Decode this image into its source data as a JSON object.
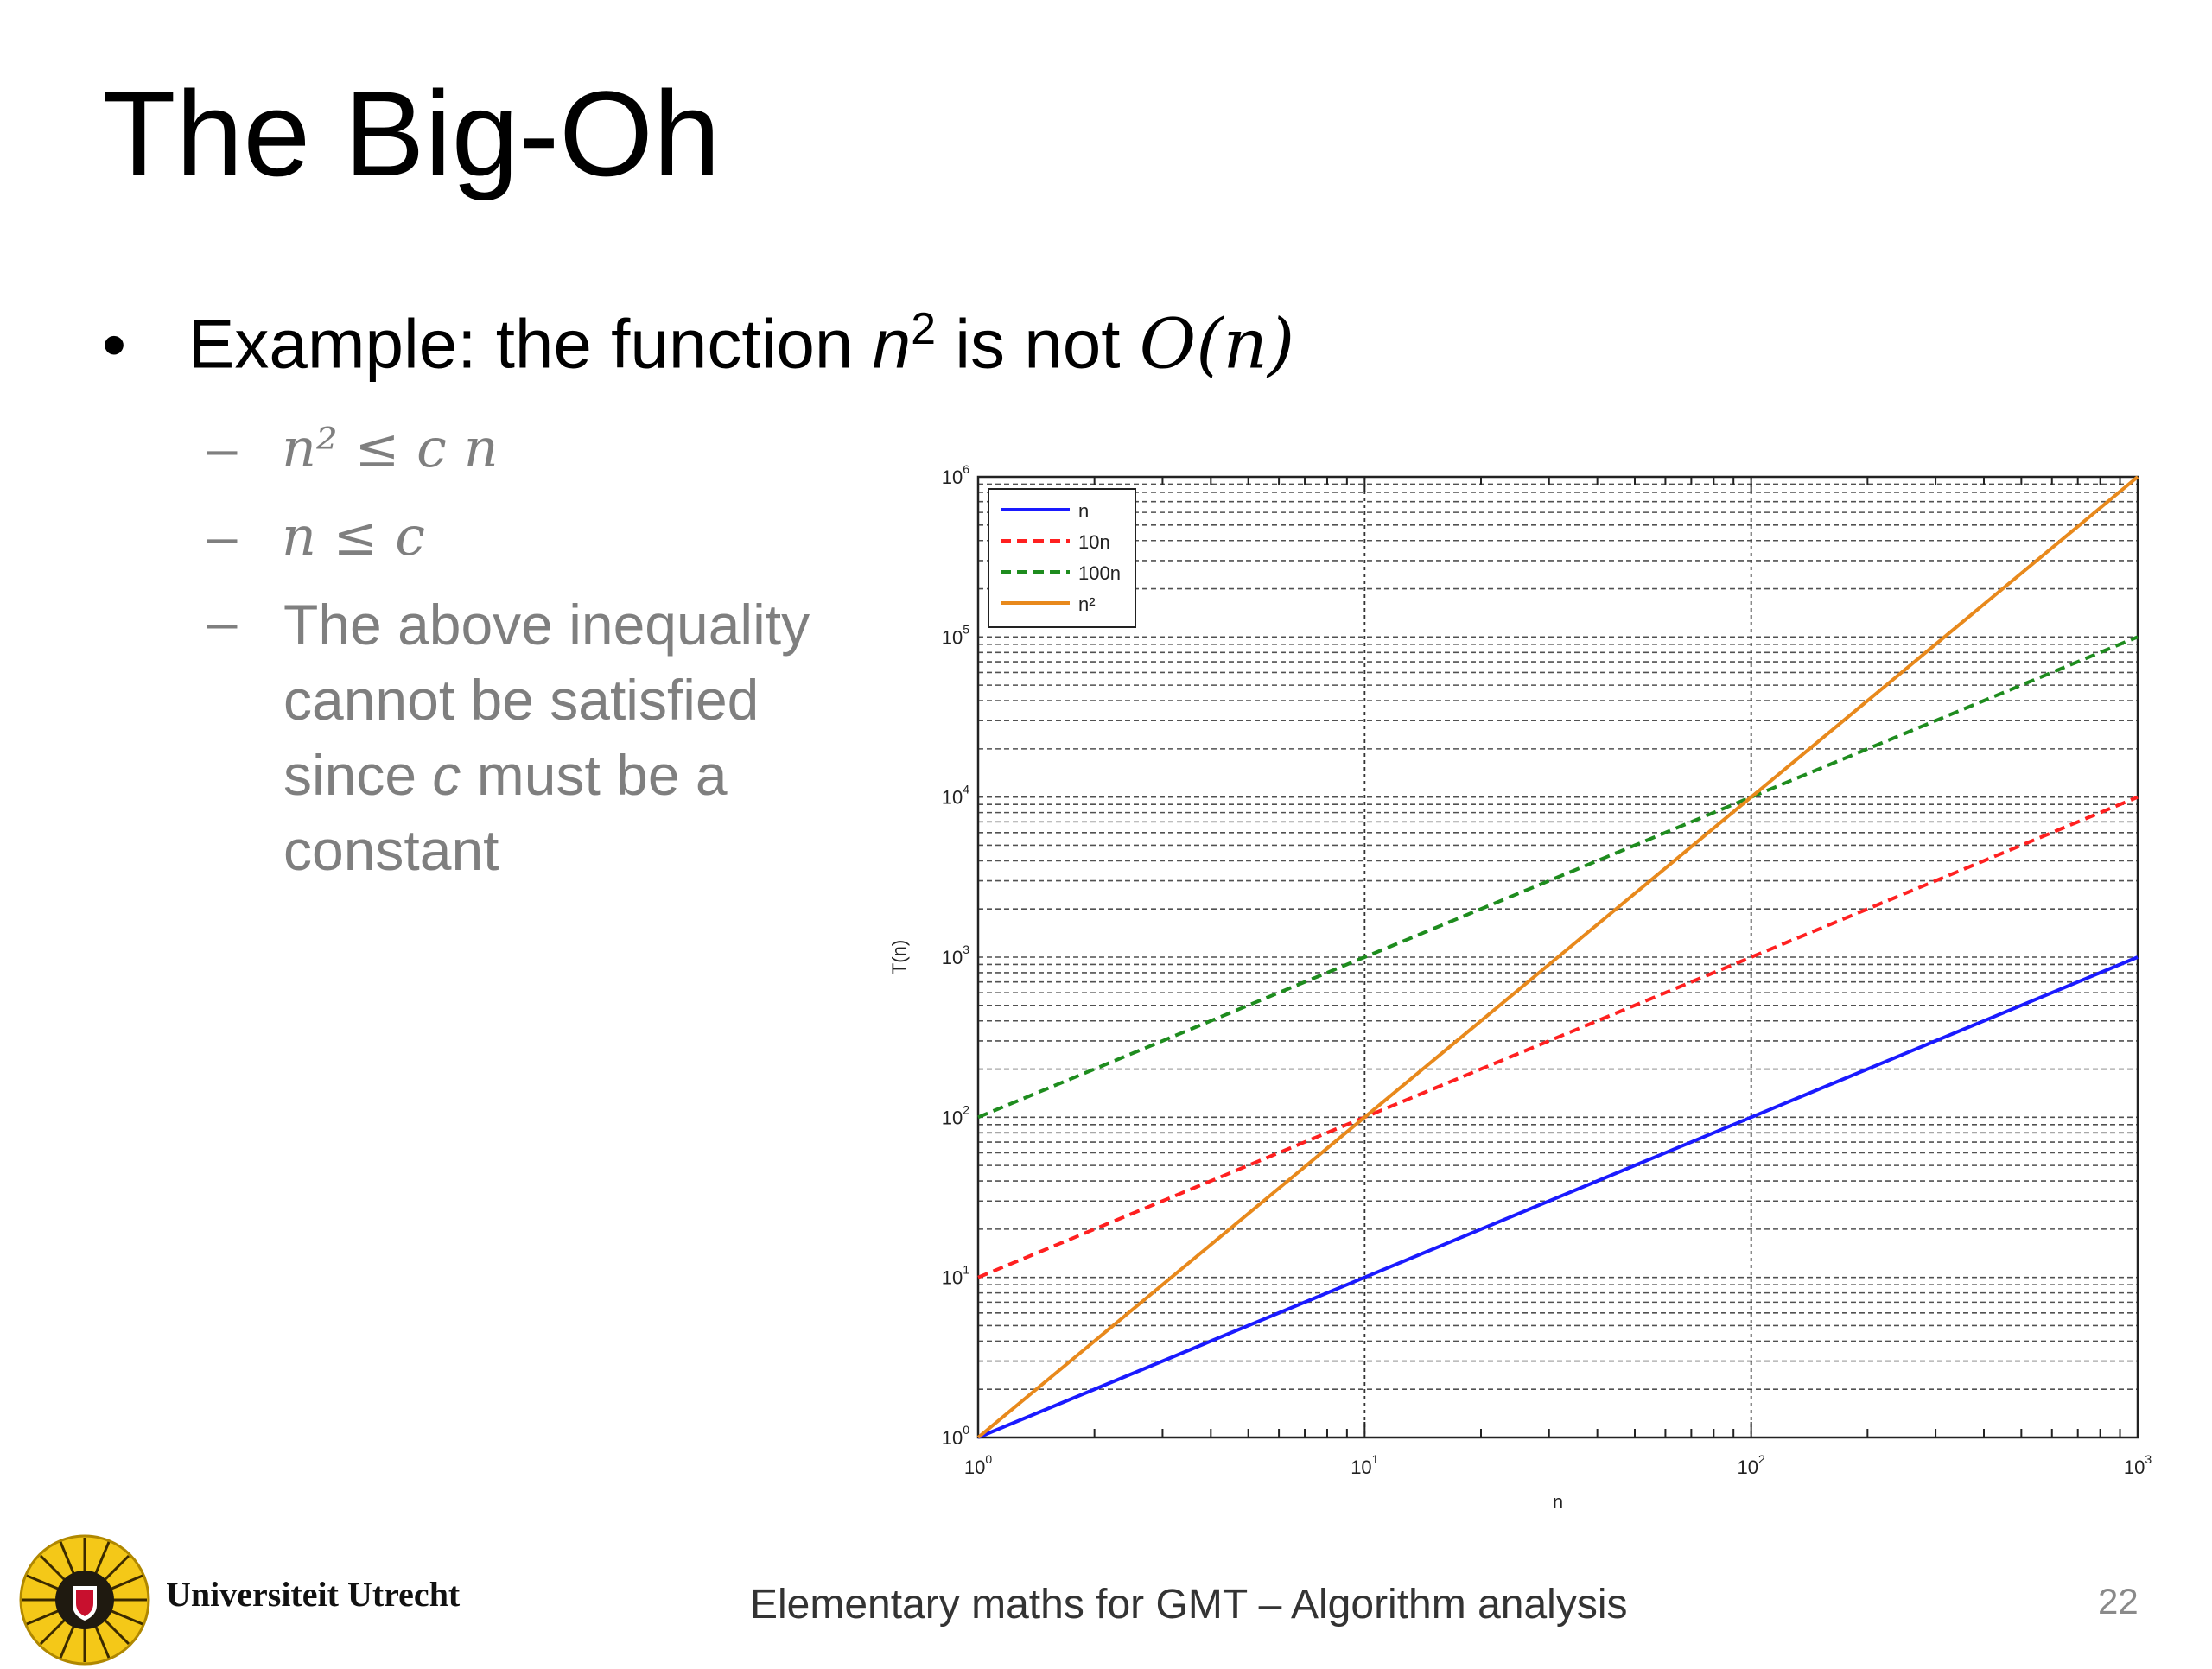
{
  "slide": {
    "title": "The Big-Oh",
    "bullet": {
      "symbol": "•",
      "prefix": "Example: the function ",
      "n": "n",
      "sup": "2",
      "middle": " is not ",
      "big_o": "O(n)"
    },
    "subitems": [
      {
        "dash": "–",
        "math": "n² ≤ c n"
      },
      {
        "dash": "–",
        "math": "n ≤ c"
      }
    ],
    "explanation": {
      "dash": "–",
      "line1": "The above inequality",
      "line2": "cannot be satisfied",
      "line3_pre": "since ",
      "line3_var": "c",
      "line3_post": " must be a",
      "line4": "constant"
    }
  },
  "chart_data": {
    "type": "line",
    "title": "",
    "xlabel": "n",
    "ylabel": "T(n)",
    "xscale": "log",
    "yscale": "log",
    "xlim": [
      1,
      1000
    ],
    "ylim": [
      1,
      1000000
    ],
    "xticks": [
      1,
      10,
      100,
      1000
    ],
    "yticks": [
      1,
      10,
      100,
      1000,
      10000,
      100000,
      1000000
    ],
    "grid": true,
    "legend_position": "top-left",
    "series": [
      {
        "name": "n",
        "color": "#1a1aff",
        "dash": "solid",
        "x": [
          1,
          10,
          100,
          1000
        ],
        "y": [
          1,
          10,
          100,
          1000
        ]
      },
      {
        "name": "10n",
        "color": "#ff2020",
        "dash": "dashed",
        "x": [
          1,
          10,
          100,
          1000
        ],
        "y": [
          10,
          100,
          1000,
          10000
        ]
      },
      {
        "name": "100n",
        "color": "#1e8c1e",
        "dash": "dashed",
        "x": [
          1,
          10,
          100,
          1000
        ],
        "y": [
          100,
          1000,
          10000,
          100000
        ]
      },
      {
        "name": "n²",
        "color": "#e8891c",
        "dash": "solid",
        "x": [
          1,
          10,
          100,
          1000
        ],
        "y": [
          1,
          100,
          10000,
          1000000
        ]
      }
    ]
  },
  "footer": {
    "university": "Universiteit Utrecht",
    "course": "Elementary maths for GMT – Algorithm analysis",
    "page": "22"
  }
}
